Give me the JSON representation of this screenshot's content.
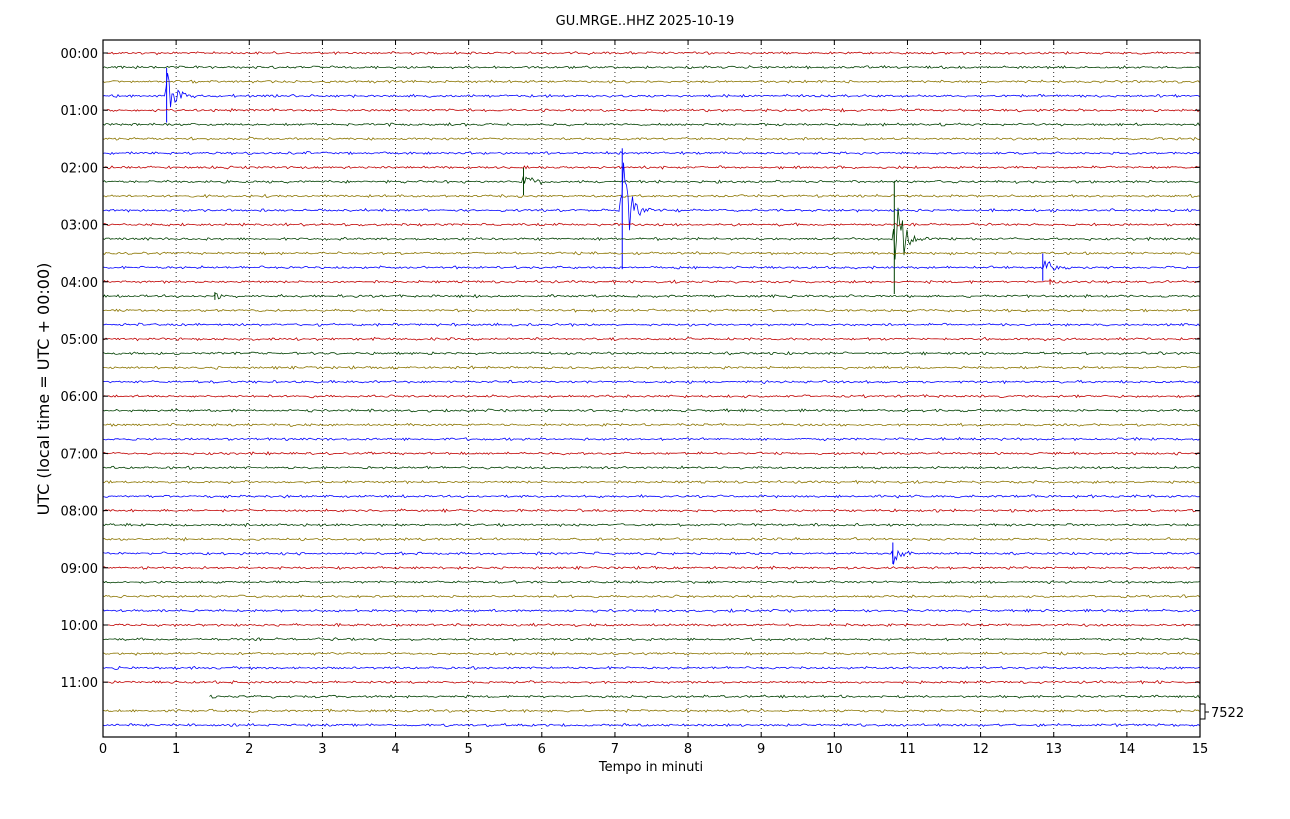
{
  "chart_data": {
    "type": "line",
    "title": "GU.MRGE..HHZ 2025-10-19",
    "xlabel": "Tempo in minuti",
    "ylabel": "UTC (local time = UTC + 00:00)",
    "xlim": [
      0,
      15
    ],
    "x_ticks": [
      "0",
      "1",
      "2",
      "3",
      "4",
      "5",
      "6",
      "7",
      "8",
      "9",
      "10",
      "11",
      "12",
      "13",
      "14",
      "15"
    ],
    "y_ticks": [
      "00:00",
      "01:00",
      "02:00",
      "03:00",
      "04:00",
      "05:00",
      "06:00",
      "07:00",
      "08:00",
      "09:00",
      "10:00",
      "11:00"
    ],
    "trace_interval_minutes": 15,
    "trace_count": 48,
    "trace_colors": [
      "#c00000",
      "#004000",
      "#8b7500",
      "#0000ff"
    ],
    "grid": "vertical dotted at each minute",
    "scale_label": "7522",
    "events": [
      {
        "row": 3,
        "minute": 0.87,
        "amplitude": 28,
        "color": "#0000ff"
      },
      {
        "row": 9,
        "minute": 5.75,
        "amplitude": 14,
        "color": "#004000"
      },
      {
        "row": 11,
        "minute": 7.1,
        "amplitude": 62,
        "color": "#0000ff"
      },
      {
        "row": 13,
        "minute": 10.82,
        "amplitude": 58,
        "color": "#004000"
      },
      {
        "row": 15,
        "minute": 12.85,
        "amplitude": 14,
        "color": "#0000ff"
      },
      {
        "row": 16,
        "minute": 12.95,
        "amplitude": 3,
        "color": "#c00000"
      },
      {
        "row": 17,
        "minute": 1.53,
        "amplitude": 4,
        "color": "#004000"
      },
      {
        "row": 35,
        "minute": 10.8,
        "amplitude": 11,
        "color": "#0000ff"
      }
    ],
    "gaps": [
      {
        "row": 45,
        "from_minute": 0.0,
        "to_minute": 1.45
      }
    ]
  }
}
